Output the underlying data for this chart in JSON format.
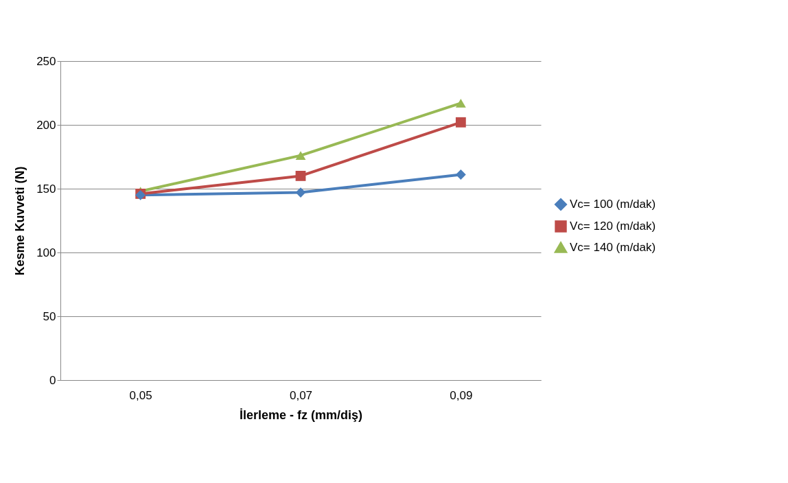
{
  "chart_data": {
    "type": "line",
    "xlabel": "İlerleme - fz (mm/diş)",
    "ylabel": "Kesme Kuvveti (N)",
    "categories": [
      "0,05",
      "0,07",
      "0,09"
    ],
    "series": [
      {
        "name": "Vc= 100 (m/dak)",
        "color": "#4a7ebb",
        "marker": "diamond",
        "values": [
          145,
          147,
          161
        ]
      },
      {
        "name": "Vc= 120 (m/dak)",
        "color": "#be4b48",
        "marker": "square",
        "values": [
          146,
          160,
          202
        ]
      },
      {
        "name": "Vc= 140 (m/dak)",
        "color": "#98b954",
        "marker": "triangle",
        "values": [
          148,
          176,
          217
        ]
      }
    ],
    "ylim": [
      0,
      250
    ],
    "yticks": [
      0,
      50,
      100,
      150,
      200,
      250
    ],
    "grid": "y",
    "legend": "right",
    "line_style": "solid"
  }
}
